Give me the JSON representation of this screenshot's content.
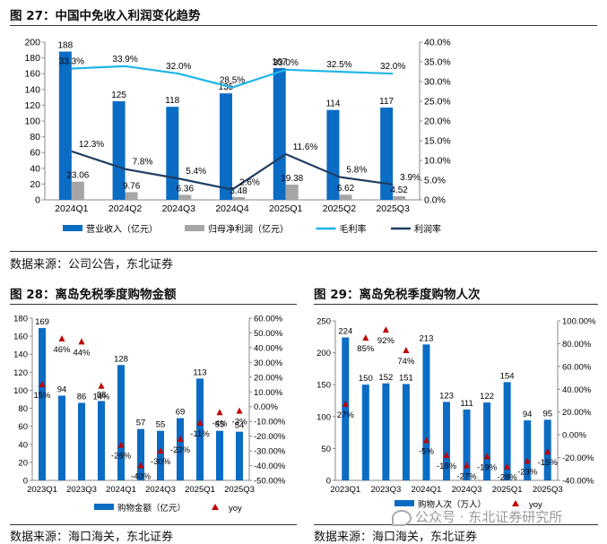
{
  "fig27": {
    "title": "图 27：中国中免收入利润变化趋势",
    "source": "数据来源：公司公告，东北证券",
    "chart_data": {
      "type": "bar",
      "categories": [
        "2024Q1",
        "2024Q2",
        "2024Q3",
        "2024Q4",
        "2025Q1",
        "2025Q2",
        "2025Q3"
      ],
      "series": [
        {
          "name": "营业收入（亿元）",
          "kind": "bar",
          "axis": "left",
          "color": "#0B6CC4",
          "values": [
            188,
            125,
            118,
            135,
            167,
            114,
            117
          ],
          "labels": [
            "188",
            "125",
            "118",
            "135",
            "167",
            "114",
            "117"
          ]
        },
        {
          "name": "归母净利润（亿元）",
          "kind": "bar",
          "axis": "left",
          "color": "#A6A6A6",
          "values": [
            23.06,
            9.76,
            6.36,
            3.48,
            19.38,
            6.62,
            4.52
          ],
          "labels": [
            "23.06",
            "9.76",
            "6.36",
            "3.48",
            "19.38",
            "6.62",
            "4.52"
          ]
        },
        {
          "name": "毛利率",
          "kind": "line",
          "axis": "right",
          "color": "#1FB6E8",
          "values": [
            33.3,
            33.9,
            32.0,
            28.5,
            33.0,
            32.5,
            32.0
          ],
          "labels": [
            "33.3%",
            "33.9%",
            "32.0%",
            "28.5%",
            "33.0%",
            "32.5%",
            "32.0%"
          ]
        },
        {
          "name": "利润率",
          "kind": "line",
          "axis": "right",
          "color": "#1F3E63",
          "values": [
            12.3,
            7.8,
            5.4,
            2.6,
            11.6,
            5.8,
            3.9
          ],
          "labels": [
            "12.3%",
            "7.8%",
            "5.4%",
            "2.6%",
            "11.6%",
            "5.8%",
            "3.9%"
          ]
        }
      ],
      "yleft": {
        "range": [
          0,
          200
        ],
        "ticks": [
          "0",
          "20",
          "40",
          "60",
          "80",
          "100",
          "120",
          "140",
          "160",
          "180",
          "200"
        ]
      },
      "yright": {
        "range": [
          0,
          40
        ],
        "ticks": [
          "0.0%",
          "5.0%",
          "10.0%",
          "15.0%",
          "20.0%",
          "25.0%",
          "30.0%",
          "35.0%",
          "40.0%"
        ]
      },
      "legend_position": "bottom"
    }
  },
  "fig28": {
    "title": "图 28：离岛免税季度购物金额",
    "source": "数据来源：海口海关，东北证券",
    "chart_data": {
      "type": "bar",
      "categories": [
        "2023Q1",
        "2023Q2",
        "2023Q3",
        "2023Q4",
        "2024Q1",
        "2024Q2",
        "2024Q3",
        "2024Q4",
        "2025Q1",
        "2025Q2",
        "2025Q3"
      ],
      "x_tick_labels": [
        "2023Q1",
        "",
        "2023Q3",
        "",
        "2024Q1",
        "",
        "2024Q3",
        "",
        "2025Q1",
        "",
        "2025Q3"
      ],
      "series": [
        {
          "name": "购物金额（亿元）",
          "kind": "bar",
          "axis": "left",
          "color": "#0B6CC4",
          "values": [
            169,
            94,
            86,
            88,
            128,
            57,
            55,
            69,
            113,
            55,
            54
          ],
          "labels": [
            "169",
            "94",
            "86",
            "88",
            "128",
            "57",
            "55",
            "69",
            "113",
            "55",
            "54"
          ]
        },
        {
          "name": "yoy",
          "kind": "marker",
          "axis": "right",
          "color": "#C00000",
          "values": [
            15,
            46,
            44,
            14,
            -26,
            -40,
            -30,
            -22,
            -11,
            -4,
            -3
          ],
          "labels": [
            "15%",
            "46%",
            "44%",
            "14%",
            "-26%",
            "-40%",
            "-30%",
            "-22%",
            "-11%",
            "-4%",
            "-3%"
          ]
        }
      ],
      "yleft": {
        "range": [
          0,
          180
        ],
        "ticks": [
          "0",
          "20",
          "40",
          "60",
          "80",
          "100",
          "120",
          "140",
          "160",
          "180"
        ]
      },
      "yright": {
        "range": [
          -50,
          60
        ],
        "ticks": [
          "-50.00%",
          "-40.00%",
          "-30.00%",
          "-20.00%",
          "-10.00%",
          "0.00%",
          "10.00%",
          "20.00%",
          "30.00%",
          "40.00%",
          "50.00%",
          "60.00%"
        ]
      },
      "legend_position": "bottom"
    }
  },
  "fig29": {
    "title": "图 29：离岛免税季度购物人次",
    "source": "数据来源：海口海关，东北证券",
    "chart_data": {
      "type": "bar",
      "categories": [
        "2023Q1",
        "2023Q2",
        "2023Q3",
        "2023Q4",
        "2024Q1",
        "2024Q2",
        "2024Q3",
        "2024Q4",
        "2025Q1",
        "2025Q2",
        "2025Q3"
      ],
      "x_tick_labels": [
        "2023Q1",
        "",
        "2023Q3",
        "",
        "2024Q1",
        "",
        "2024Q3",
        "",
        "2025Q1",
        "",
        "2025Q3"
      ],
      "series": [
        {
          "name": "购物人次（万人）",
          "kind": "bar",
          "axis": "left",
          "color": "#0B6CC4",
          "values": [
            224,
            150,
            152,
            151,
            213,
            123,
            111,
            122,
            154,
            94,
            95
          ],
          "labels": [
            "224",
            "150",
            "152",
            "151",
            "213",
            "123",
            "111",
            "122",
            "154",
            "94",
            "95"
          ]
        },
        {
          "name": "yoy",
          "kind": "marker",
          "axis": "right",
          "color": "#C00000",
          "values": [
            27,
            85,
            92,
            74,
            -5,
            -18,
            -27,
            -19,
            -28,
            -23,
            -15
          ],
          "labels": [
            "27%",
            "85%",
            "92%",
            "74%",
            "-5%",
            "-18%",
            "-27%",
            "-19%",
            "-28%",
            "-23%",
            "-15%"
          ]
        }
      ],
      "yleft": {
        "range": [
          0,
          250
        ],
        "ticks": [
          "0",
          "50",
          "100",
          "150",
          "200",
          "250"
        ]
      },
      "yright": {
        "range": [
          -40,
          100
        ],
        "ticks": [
          "-40.00%",
          "-20.00%",
          "0.00%",
          "20.00%",
          "40.00%",
          "60.00%",
          "80.00%",
          "100.00%"
        ]
      },
      "legend_position": "bottom"
    }
  },
  "watermark": "公众号 · 东北证券研究所"
}
